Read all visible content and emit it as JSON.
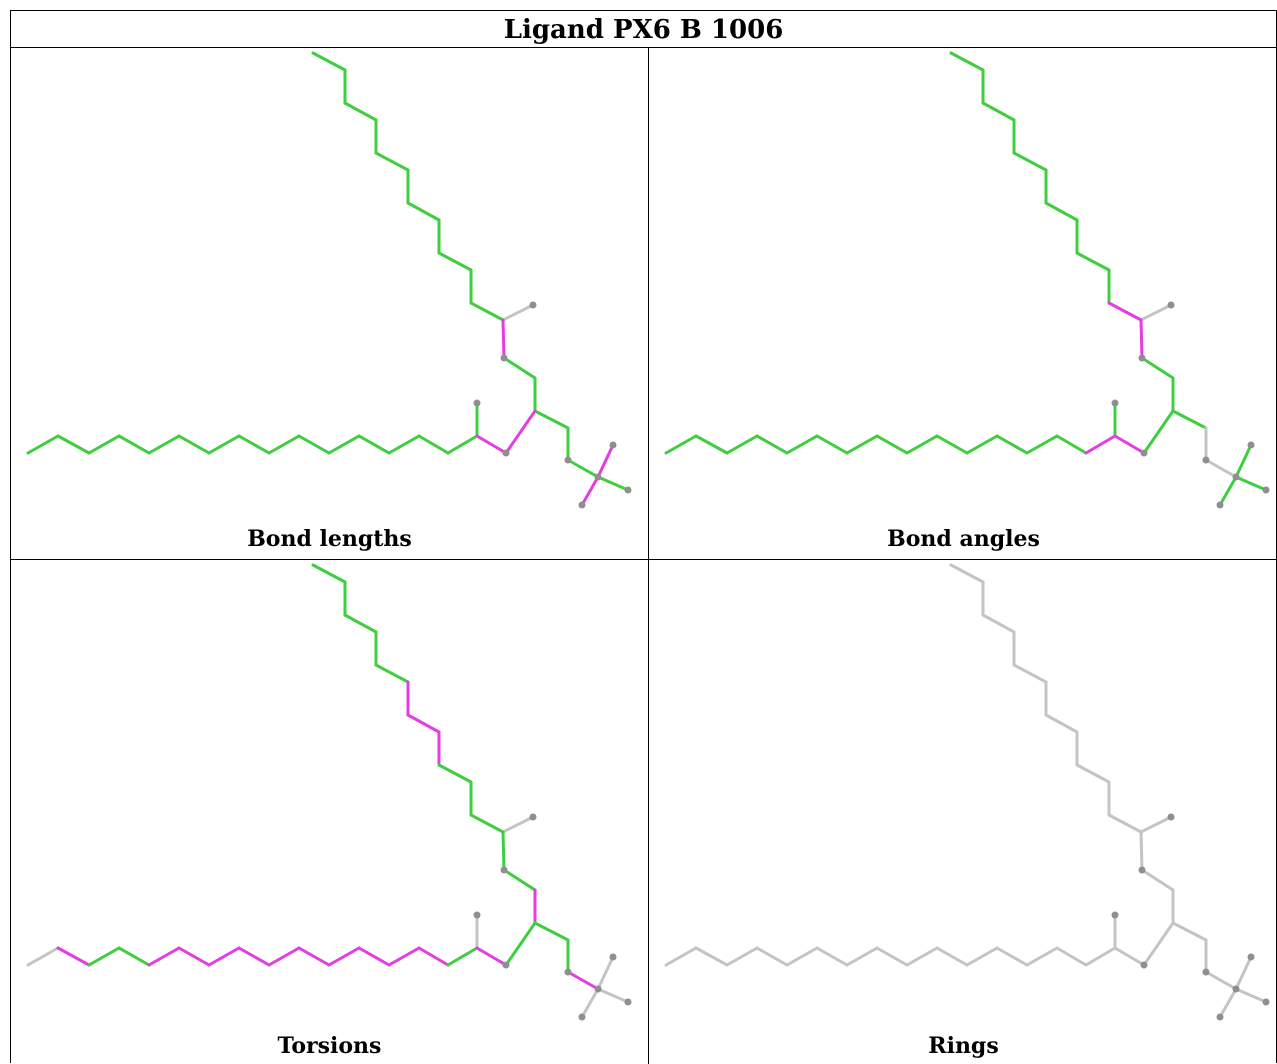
{
  "title": "Ligand PX6 B 1006",
  "panels": [
    {
      "caption": "Bond lengths",
      "mode": "lengths"
    },
    {
      "caption": "Bond angles",
      "mode": "angles"
    },
    {
      "caption": "Torsions",
      "mode": "torsions"
    },
    {
      "caption": "Rings",
      "mode": "rings"
    }
  ],
  "colors": {
    "green": "#3fce3f",
    "magenta": "#e33de3",
    "gray": "#c4c4c4",
    "atom": "#8f8f8f"
  }
}
